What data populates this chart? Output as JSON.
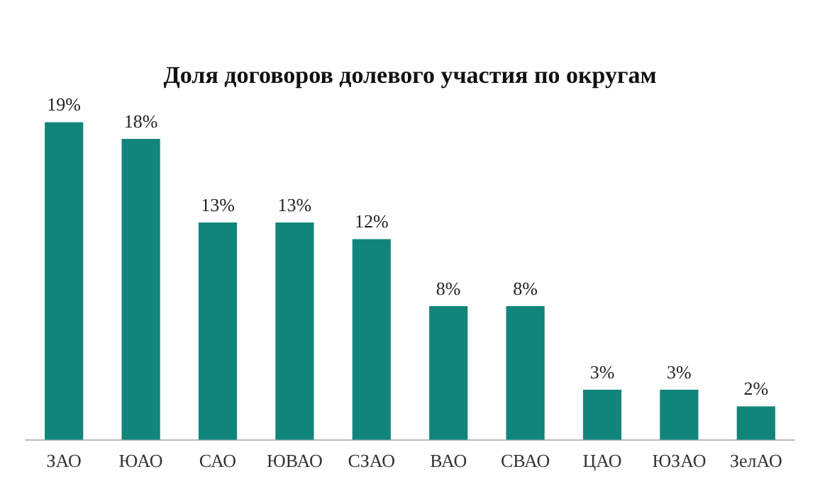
{
  "chart_data": {
    "type": "bar",
    "title": "Доля договоров долевого участия по округам",
    "categories": [
      "ЗАО",
      "ЮАО",
      "САО",
      "ЮВАО",
      "СЗАО",
      "ВАО",
      "СВАО",
      "ЦАО",
      "ЮЗАО",
      "ЗелАО"
    ],
    "values": [
      19,
      18,
      13,
      13,
      12,
      8,
      8,
      3,
      3,
      2
    ],
    "value_labels": [
      "19%",
      "18%",
      "13%",
      "13%",
      "12%",
      "8%",
      "8%",
      "3%",
      "3%",
      "2%"
    ],
    "color": "#12857b",
    "grid": false,
    "legend": false,
    "tick_labels": "x"
  }
}
